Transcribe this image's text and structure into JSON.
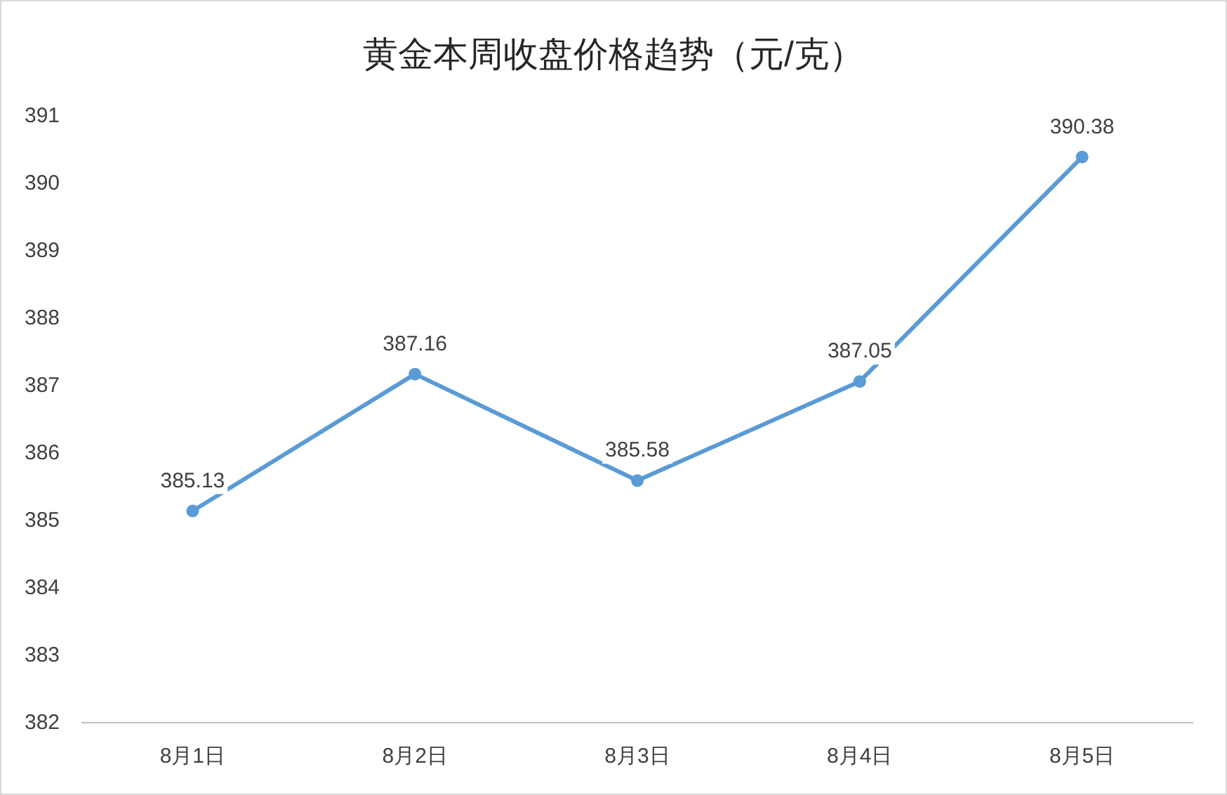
{
  "chart_data": {
    "type": "line",
    "title": "黄金本周收盘价格趋势（元/克）",
    "categories": [
      "8月1日",
      "8月2日",
      "8月3日",
      "8月4日",
      "8月5日"
    ],
    "series": [
      {
        "color": "#5b9bd5",
        "values": [
          385.13,
          387.16,
          385.58,
          387.05,
          390.38
        ]
      }
    ],
    "ylim": [
      382,
      391
    ],
    "yticks": [
      382,
      383,
      384,
      385,
      386,
      387,
      388,
      389,
      390,
      391
    ],
    "data_labels": true,
    "marker": "circle",
    "line_style": "solid",
    "grid": false
  }
}
